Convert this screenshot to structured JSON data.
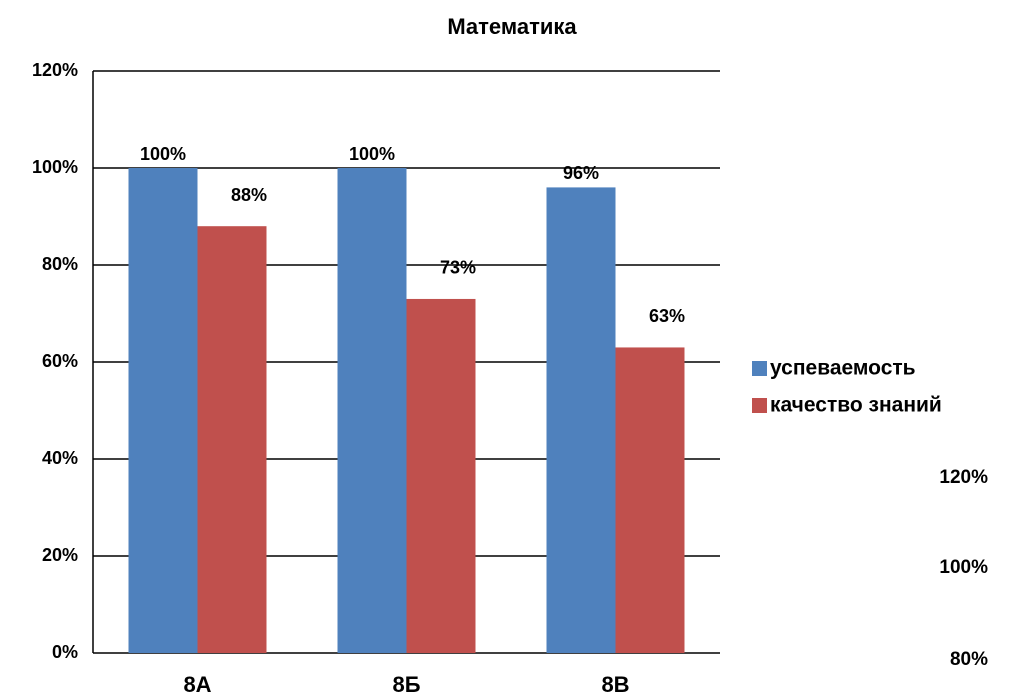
{
  "chart_data": {
    "type": "bar",
    "title": "Математика",
    "categories": [
      "8А",
      "8Б",
      "8В"
    ],
    "series": [
      {
        "name": "успеваемость",
        "color": "#4f81bd",
        "values": [
          100,
          100,
          96
        ],
        "value_labels": [
          "100%",
          "100%",
          "96%"
        ]
      },
      {
        "name": "качество знаний",
        "color": "#c0504d",
        "values": [
          88,
          73,
          63
        ],
        "value_labels": [
          "88%",
          "73%",
          "63%"
        ]
      }
    ],
    "ylim": [
      0,
      120
    ],
    "yticks": [
      {
        "value": 0,
        "label": "0%"
      },
      {
        "value": 20,
        "label": "20%"
      },
      {
        "value": 40,
        "label": "40%"
      },
      {
        "value": 60,
        "label": "60%"
      },
      {
        "value": 80,
        "label": "80%"
      },
      {
        "value": 100,
        "label": "100%"
      },
      {
        "value": 120,
        "label": "120%"
      }
    ],
    "grid": true,
    "legend": "right"
  },
  "stray_labels": [
    "120%",
    "100%",
    "80%"
  ]
}
